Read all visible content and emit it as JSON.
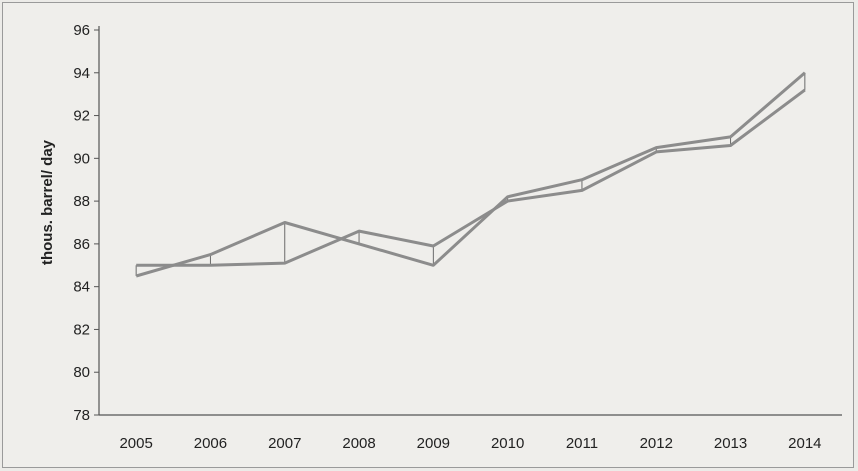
{
  "chart_data": {
    "type": "line",
    "ylabel": "thous. barrel/ day",
    "xlabel": "",
    "title": "",
    "x": [
      "2005",
      "2006",
      "2007",
      "2008",
      "2009",
      "2010",
      "2011",
      "2012",
      "2013",
      "2014"
    ],
    "ylim": [
      78,
      96
    ],
    "yticks": [
      78,
      80,
      82,
      84,
      86,
      88,
      90,
      92,
      94,
      96
    ],
    "series": [
      {
        "values": [
          84.5,
          85.5,
          87.0,
          86.0,
          85.0,
          88.2,
          89.0,
          90.5,
          91.0,
          94.0
        ]
      },
      {
        "values": [
          85.0,
          85.0,
          85.1,
          86.6,
          85.9,
          88.0,
          88.5,
          90.3,
          90.6,
          93.2
        ]
      }
    ],
    "grid": false,
    "legend": "none",
    "colors": {
      "series": "#8c8c8c",
      "axis": "#555555",
      "background": "#efeeeb"
    }
  }
}
